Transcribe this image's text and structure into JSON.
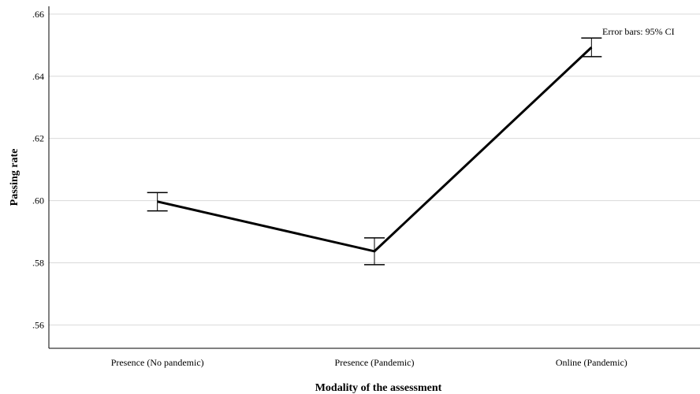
{
  "chart_data": {
    "type": "line",
    "title": "",
    "xlabel": "Modality of the assessment",
    "ylabel": "Passing rate",
    "categories": [
      "Presence (No pandemic)",
      "Presence (Pandemic)",
      "Online (Pandemic)"
    ],
    "series": [
      {
        "values": [
          0.5997,
          0.5837,
          0.6493
        ],
        "ci_lower": [
          0.5967,
          0.5794,
          0.6463
        ],
        "ci_upper": [
          0.6026,
          0.588,
          0.6523
        ]
      }
    ],
    "ylim": [
      0.5525,
      0.6625
    ],
    "yticks": [
      0.56,
      0.58,
      0.6,
      0.62,
      0.64,
      0.66
    ],
    "ytick_labels": [
      ".56",
      ".58",
      ".60",
      ".62",
      ".64",
      ".66"
    ],
    "grid": "horizontal",
    "annotation": "Error bars: 95% CI",
    "line_color": "#000000",
    "grid_color": "#d9d9d9"
  }
}
